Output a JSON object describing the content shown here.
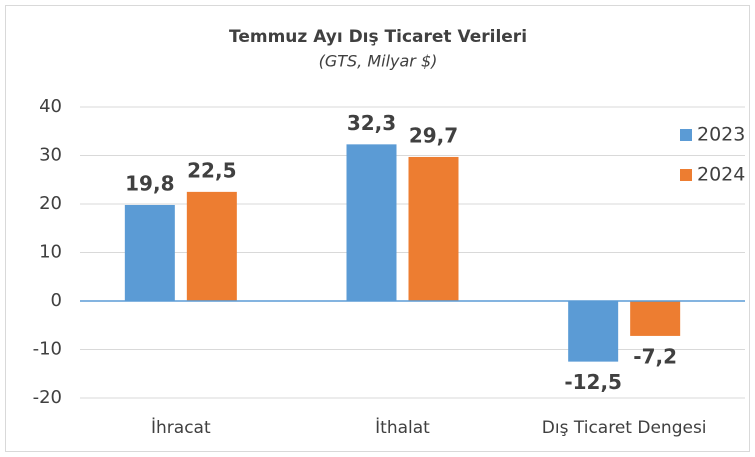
{
  "chart_data": {
    "type": "bar",
    "title": "Temmuz Ayı Dış Ticaret Verileri",
    "subtitle": "(GTS, Milyar $)",
    "categories": [
      "İhracat",
      "İthalat",
      "Dış Ticaret Dengesi"
    ],
    "series": [
      {
        "name": "2023",
        "color": "#5b9bd5",
        "values": [
          19.8,
          32.3,
          -12.5
        ],
        "value_labels": [
          "19,8",
          "32,3",
          "-12,5"
        ]
      },
      {
        "name": "2024",
        "color": "#ed7d31",
        "values": [
          22.5,
          29.7,
          -7.2
        ],
        "value_labels": [
          "22,5",
          "29,7",
          "-7,2"
        ]
      }
    ],
    "ylim": [
      -20,
      40
    ],
    "yticks": [
      -20,
      -10,
      0,
      10,
      20,
      30,
      40
    ],
    "grid": true,
    "legend": "right"
  }
}
